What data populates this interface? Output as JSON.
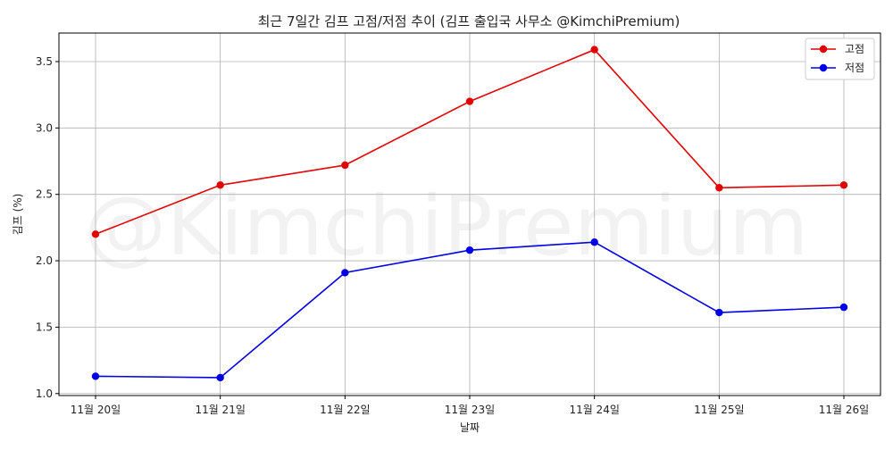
{
  "chart_data": {
    "type": "line",
    "title": "최근 7일간 김프 고점/저점 추이 (김프 출입국 사무소 @KimchiPremium)",
    "xlabel": "날짜",
    "ylabel": "김프 (%)",
    "watermark": "@KimchiPremium",
    "categories": [
      "11월 20일",
      "11월 21일",
      "11월 22일",
      "11월 23일",
      "11월 24일",
      "11월 25일",
      "11월 26일"
    ],
    "series": [
      {
        "name": "고점",
        "color": "#e30000",
        "values": [
          2.2,
          2.57,
          2.72,
          3.2,
          3.59,
          2.55,
          2.57
        ]
      },
      {
        "name": "저점",
        "color": "#0000e6",
        "values": [
          1.13,
          1.12,
          1.91,
          2.08,
          2.14,
          1.61,
          1.65
        ]
      }
    ],
    "ylim": [
      0.985,
      3.715
    ],
    "yticks": [
      1.0,
      1.5,
      2.0,
      2.5,
      3.0,
      3.5
    ],
    "ytick_labels": [
      "1.0",
      "1.5",
      "2.0",
      "2.5",
      "3.0",
      "3.5"
    ],
    "grid": true,
    "legend_position": "top-right"
  }
}
